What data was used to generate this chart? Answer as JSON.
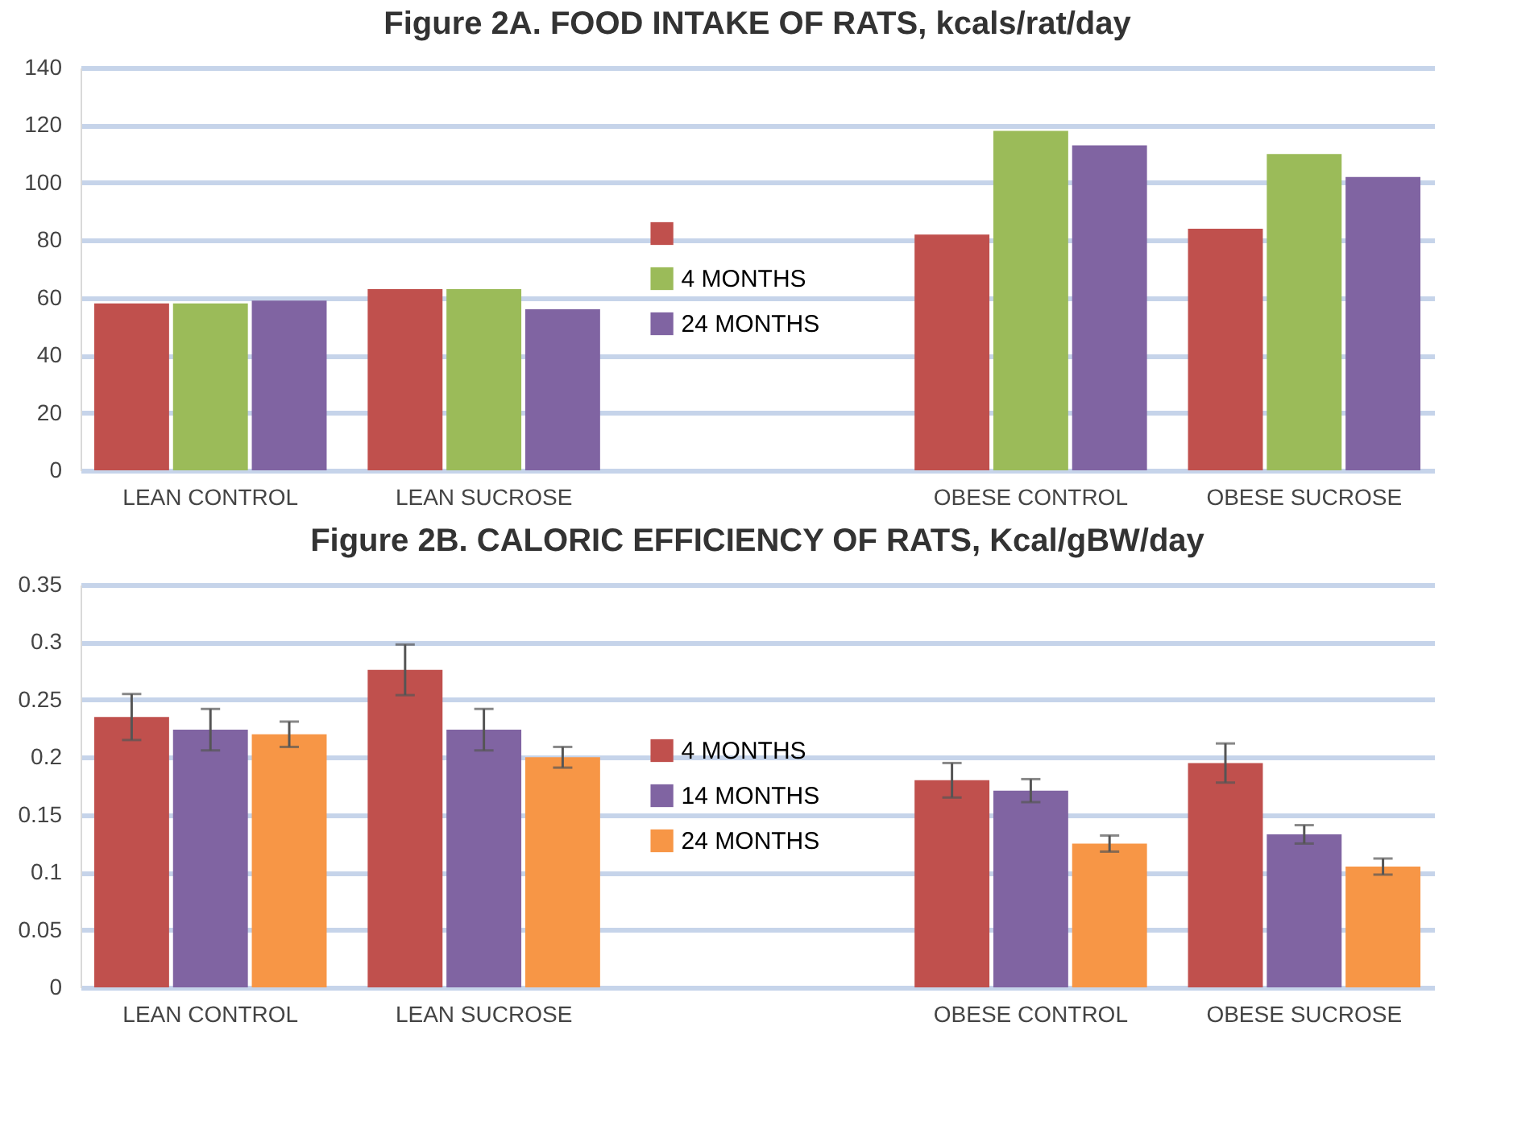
{
  "chart_data": [
    {
      "type": "bar",
      "title": "Figure 2A. FOOD INTAKE OF RATS, kcals/rat/day",
      "categories": [
        "LEAN CONTROL",
        "LEAN SUCROSE",
        null,
        "OBESE CONTROL",
        "OBESE SUCROSE"
      ],
      "series": [
        {
          "color": "#c0504d",
          "values": [
            58,
            63,
            null,
            82,
            84
          ]
        },
        {
          "name": "4 MONTHS",
          "color": "#9bbb59",
          "values": [
            58,
            63,
            null,
            118,
            110
          ]
        },
        {
          "name": "24 MONTHS",
          "color": "#8064a2",
          "values": [
            59,
            56,
            null,
            113,
            102
          ]
        }
      ],
      "ylim": [
        0,
        140
      ],
      "yticks": [
        0,
        20,
        40,
        60,
        80,
        100,
        120,
        140
      ],
      "grid": "y",
      "legend": "center"
    },
    {
      "type": "bar",
      "title": "Figure 2B. CALORIC EFFICIENCY OF RATS, Kcal/gBW/day",
      "categories": [
        "LEAN CONTROL",
        "LEAN SUCROSE",
        null,
        "OBESE CONTROL",
        "OBESE SUCROSE"
      ],
      "series": [
        {
          "name": "4 MONTHS",
          "color": "#c0504d",
          "values": [
            0.235,
            0.276,
            null,
            0.18,
            0.195
          ],
          "errors": [
            0.02,
            0.022,
            null,
            0.015,
            0.017
          ]
        },
        {
          "name": "14 MONTHS",
          "color": "#8064a2",
          "values": [
            0.224,
            0.224,
            null,
            0.171,
            0.133
          ],
          "errors": [
            0.018,
            0.018,
            null,
            0.01,
            0.008
          ]
        },
        {
          "name": "24 MONTHS",
          "color": "#f79646",
          "values": [
            0.22,
            0.2,
            null,
            0.125,
            0.105
          ],
          "errors": [
            0.011,
            0.009,
            null,
            0.007,
            0.007
          ]
        }
      ],
      "ylim": [
        0,
        0.35
      ],
      "yticks": [
        0,
        0.05,
        0.1,
        0.15,
        0.2,
        0.25,
        0.3,
        0.35
      ],
      "grid": "y",
      "legend": "center"
    }
  ]
}
